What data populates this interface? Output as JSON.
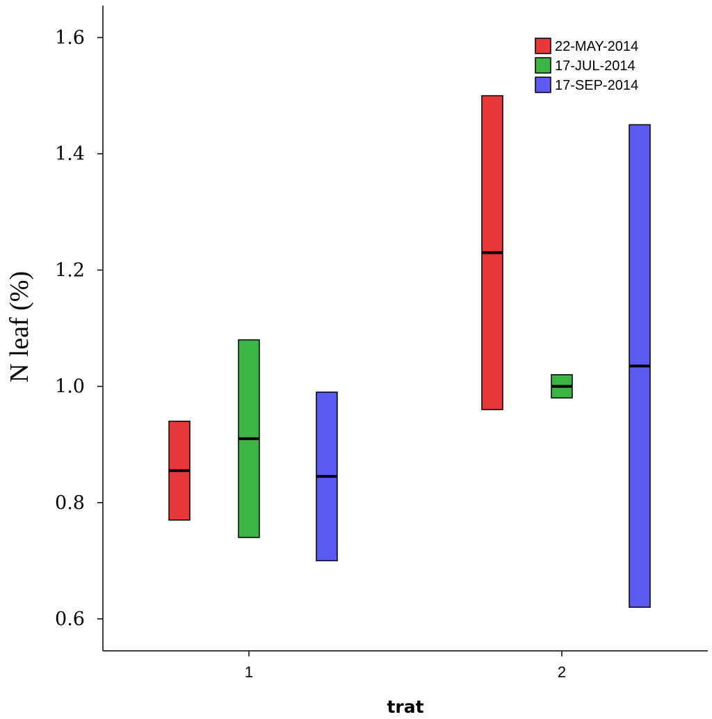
{
  "chart_data": {
    "type": "box",
    "title": "",
    "xlabel": "trat",
    "ylabel": "N leaf (%)",
    "categories": [
      "1",
      "2"
    ],
    "ylim": [
      0.55,
      1.66
    ],
    "yticks": [
      "0.6",
      "0.8",
      "1.0",
      "1.2",
      "1.4",
      "1.6"
    ],
    "legend_position": "top-right",
    "series": [
      {
        "name": "22-MAY-2014",
        "color": "#e8373b",
        "boxes": [
          {
            "category": "1",
            "q1": 0.77,
            "median": 0.855,
            "q3": 0.94
          },
          {
            "category": "2",
            "q1": 0.96,
            "median": 1.23,
            "q3": 1.5
          }
        ]
      },
      {
        "name": "17-JUL-2014",
        "color": "#3db545",
        "boxes": [
          {
            "category": "1",
            "q1": 0.74,
            "median": 0.91,
            "q3": 1.08
          },
          {
            "category": "2",
            "q1": 0.98,
            "median": 1.0,
            "q3": 1.02
          }
        ]
      },
      {
        "name": "17-SEP-2014",
        "color": "#5b5bf2",
        "boxes": [
          {
            "category": "1",
            "q1": 0.7,
            "median": 0.845,
            "q3": 0.99
          },
          {
            "category": "2",
            "q1": 0.62,
            "median": 1.035,
            "q3": 1.45
          }
        ]
      }
    ]
  }
}
